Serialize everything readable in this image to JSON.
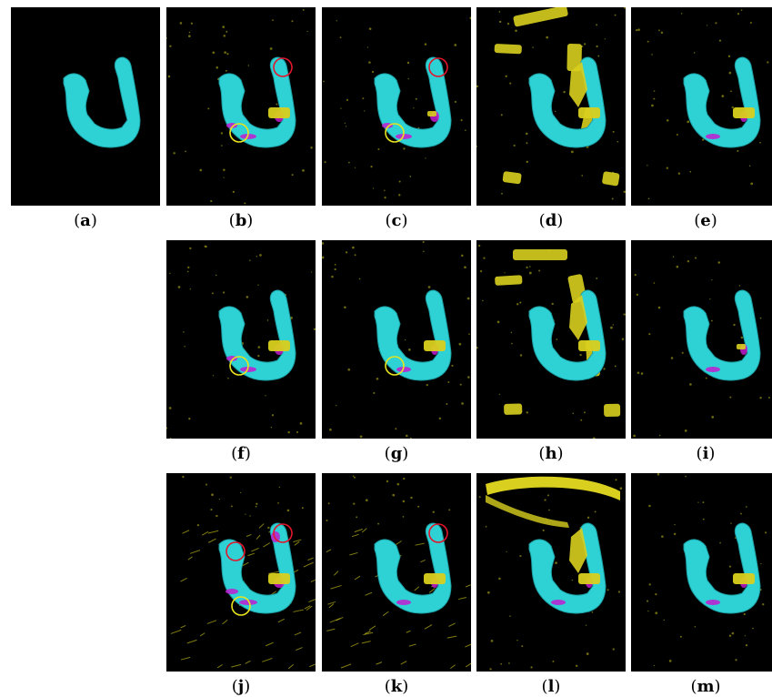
{
  "colors": {
    "bone": "#2fd2d4",
    "bone_shade": "#1a9ea3",
    "error_magenta": "#c21bd0",
    "artifact_yellow": "#d8cf1e",
    "circle_red": "#e2162c",
    "circle_yellow": "#e8e41d",
    "background": "#000000"
  },
  "panels": [
    {
      "id": "a",
      "label": "a",
      "row": 0,
      "col": 0,
      "magenta": "none",
      "yellow": "none",
      "circles": [],
      "artifacts": "none"
    },
    {
      "id": "b",
      "label": "b",
      "row": 0,
      "col": 1,
      "magenta": "medium",
      "yellow": "teeth",
      "circles": [
        "red-right",
        "yellow-left"
      ],
      "artifacts": "sparse"
    },
    {
      "id": "c",
      "label": "c",
      "row": 0,
      "col": 2,
      "magenta": "medium",
      "yellow": "small",
      "circles": [
        "red-right",
        "yellow-left"
      ],
      "artifacts": "sparse"
    },
    {
      "id": "d",
      "label": "d",
      "row": 0,
      "col": 3,
      "magenta": "none",
      "yellow": "heavy",
      "circles": [],
      "artifacts": "large"
    },
    {
      "id": "e",
      "label": "e",
      "row": 0,
      "col": 4,
      "magenta": "low",
      "yellow": "teeth",
      "circles": [],
      "artifacts": "sparse"
    },
    {
      "id": "f",
      "label": "f",
      "row": 1,
      "col": 1,
      "magenta": "medium",
      "yellow": "teeth",
      "circles": [
        "yellow-left"
      ],
      "artifacts": "sparse"
    },
    {
      "id": "g",
      "label": "g",
      "row": 1,
      "col": 2,
      "magenta": "low",
      "yellow": "teeth",
      "circles": [
        "yellow-left"
      ],
      "artifacts": "sparse"
    },
    {
      "id": "h",
      "label": "h",
      "row": 1,
      "col": 3,
      "magenta": "none",
      "yellow": "heavy",
      "circles": [],
      "artifacts": "large"
    },
    {
      "id": "i",
      "label": "i",
      "row": 1,
      "col": 4,
      "magenta": "low",
      "yellow": "small",
      "circles": [],
      "artifacts": "sparse"
    },
    {
      "id": "j",
      "label": "j",
      "row": 2,
      "col": 1,
      "magenta": "high",
      "yellow": "teeth",
      "circles": [
        "red-left",
        "red-right",
        "yellow-bottom"
      ],
      "artifacts": "streaks"
    },
    {
      "id": "k",
      "label": "k",
      "row": 2,
      "col": 2,
      "magenta": "low",
      "yellow": "teeth",
      "circles": [
        "red-right"
      ],
      "artifacts": "streaks"
    },
    {
      "id": "l",
      "label": "l",
      "row": 2,
      "col": 3,
      "magenta": "low",
      "yellow": "heavy",
      "circles": [],
      "artifacts": "ring"
    },
    {
      "id": "m",
      "label": "m",
      "row": 2,
      "col": 4,
      "magenta": "low",
      "yellow": "teeth",
      "circles": [],
      "artifacts": "sparse"
    }
  ]
}
